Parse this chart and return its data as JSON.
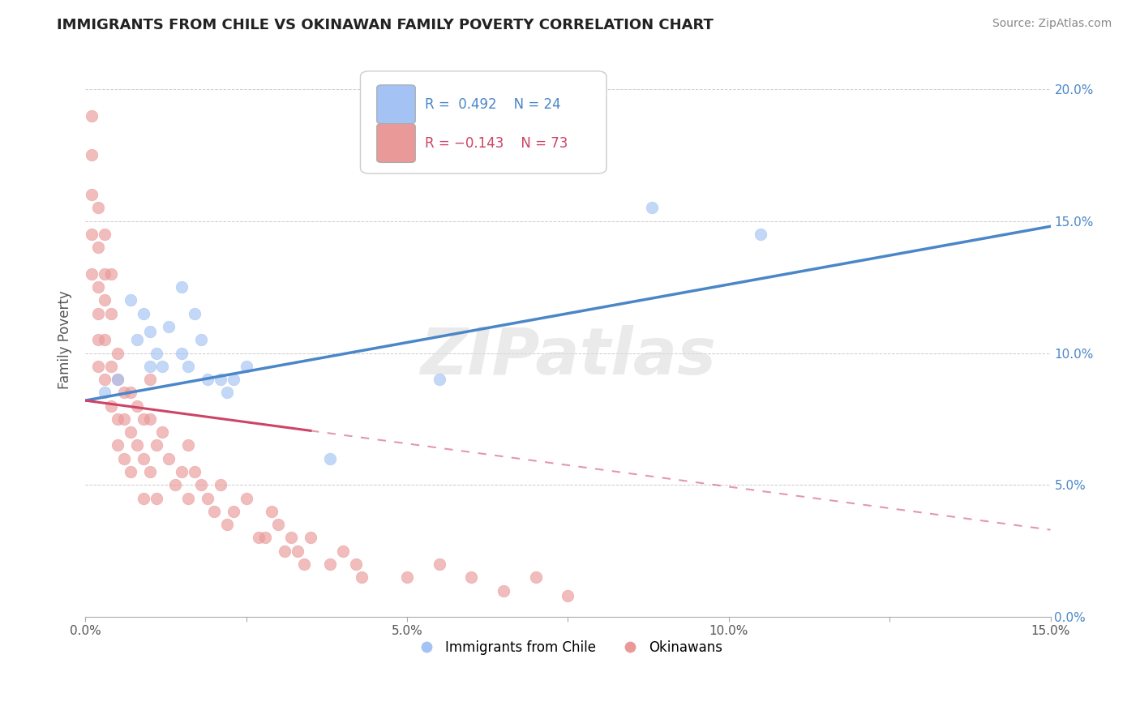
{
  "title": "IMMIGRANTS FROM CHILE VS OKINAWAN FAMILY POVERTY CORRELATION CHART",
  "source": "Source: ZipAtlas.com",
  "ylabel": "Family Poverty",
  "legend_blue_label": "Immigrants from Chile",
  "legend_pink_label": "Okinawans",
  "legend_blue_R": "R =  0.492",
  "legend_blue_N": "N = 24",
  "legend_pink_R": "R = −0.143",
  "legend_pink_N": "N = 73",
  "xmin": 0.0,
  "xmax": 0.15,
  "ymin": 0.0,
  "ymax": 0.21,
  "xtick_labels": [
    "0.0%",
    "",
    "5.0%",
    "",
    "10.0%",
    "",
    "15.0%"
  ],
  "xtick_values": [
    0.0,
    0.025,
    0.05,
    0.075,
    0.1,
    0.125,
    0.15
  ],
  "ytick_labels_right": [
    "20.0%",
    "15.0%",
    "10.0%",
    "5.0%",
    "0.0%"
  ],
  "ytick_values": [
    0.2,
    0.15,
    0.1,
    0.05,
    0.0
  ],
  "blue_color": "#a4c2f4",
  "pink_color": "#ea9999",
  "blue_line_color": "#4a86c8",
  "pink_line_color": "#cc4466",
  "grid_color": "#cccccc",
  "background_color": "#ffffff",
  "watermark_text": "ZIPatlas",
  "blue_scatter_x": [
    0.003,
    0.005,
    0.007,
    0.008,
    0.009,
    0.01,
    0.01,
    0.011,
    0.012,
    0.013,
    0.015,
    0.015,
    0.016,
    0.017,
    0.018,
    0.019,
    0.021,
    0.022,
    0.023,
    0.025,
    0.038,
    0.055,
    0.088,
    0.105
  ],
  "blue_scatter_y": [
    0.085,
    0.09,
    0.12,
    0.105,
    0.115,
    0.095,
    0.108,
    0.1,
    0.095,
    0.11,
    0.125,
    0.1,
    0.095,
    0.115,
    0.105,
    0.09,
    0.09,
    0.085,
    0.09,
    0.095,
    0.06,
    0.09,
    0.155,
    0.145
  ],
  "pink_scatter_x": [
    0.001,
    0.001,
    0.001,
    0.001,
    0.001,
    0.002,
    0.002,
    0.002,
    0.002,
    0.002,
    0.002,
    0.003,
    0.003,
    0.003,
    0.003,
    0.003,
    0.004,
    0.004,
    0.004,
    0.004,
    0.005,
    0.005,
    0.005,
    0.005,
    0.006,
    0.006,
    0.006,
    0.007,
    0.007,
    0.007,
    0.008,
    0.008,
    0.009,
    0.009,
    0.009,
    0.01,
    0.01,
    0.01,
    0.011,
    0.011,
    0.012,
    0.013,
    0.014,
    0.015,
    0.016,
    0.016,
    0.017,
    0.018,
    0.019,
    0.02,
    0.021,
    0.022,
    0.023,
    0.025,
    0.027,
    0.028,
    0.029,
    0.03,
    0.031,
    0.032,
    0.033,
    0.034,
    0.035,
    0.038,
    0.04,
    0.042,
    0.043,
    0.05,
    0.055,
    0.06,
    0.065,
    0.07,
    0.075
  ],
  "pink_scatter_y": [
    0.19,
    0.175,
    0.16,
    0.145,
    0.13,
    0.155,
    0.14,
    0.125,
    0.115,
    0.105,
    0.095,
    0.145,
    0.13,
    0.12,
    0.105,
    0.09,
    0.13,
    0.115,
    0.095,
    0.08,
    0.1,
    0.09,
    0.075,
    0.065,
    0.085,
    0.075,
    0.06,
    0.085,
    0.07,
    0.055,
    0.08,
    0.065,
    0.075,
    0.06,
    0.045,
    0.09,
    0.075,
    0.055,
    0.065,
    0.045,
    0.07,
    0.06,
    0.05,
    0.055,
    0.065,
    0.045,
    0.055,
    0.05,
    0.045,
    0.04,
    0.05,
    0.035,
    0.04,
    0.045,
    0.03,
    0.03,
    0.04,
    0.035,
    0.025,
    0.03,
    0.025,
    0.02,
    0.03,
    0.02,
    0.025,
    0.02,
    0.015,
    0.015,
    0.02,
    0.015,
    0.01,
    0.015,
    0.008
  ],
  "blue_line_y0": 0.082,
  "blue_line_y1": 0.148,
  "pink_line_y0": 0.082,
  "pink_line_y1": 0.033,
  "pink_solid_xend": 0.035,
  "title_fontsize": 13,
  "source_fontsize": 10,
  "tick_fontsize": 11,
  "ylabel_fontsize": 12
}
